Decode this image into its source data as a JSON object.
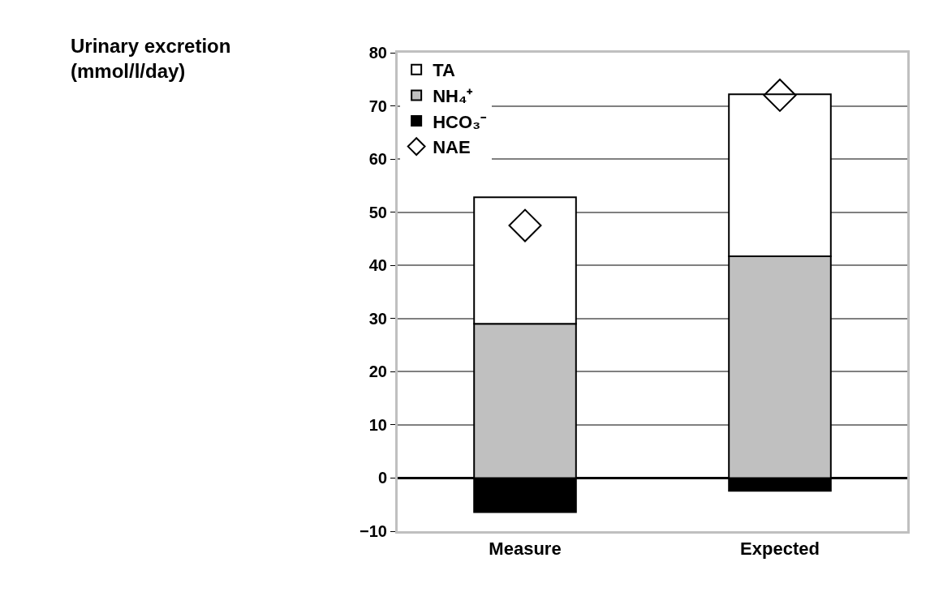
{
  "chart_data": {
    "type": "bar",
    "annotations": [
      "Urinary excretion\n(mmol/l/day)"
    ],
    "categories": [
      "Measure",
      "Expected"
    ],
    "stacked": true,
    "series": [
      {
        "name": "HCO₃⁻",
        "color": "#000000",
        "values": [
          -6.4,
          -2.4
        ]
      },
      {
        "name": "NH₄⁺",
        "color": "#c0c0c0",
        "values": [
          29,
          41.7
        ]
      },
      {
        "name": "TA",
        "color": "#ffffff",
        "values": [
          23.8,
          30.5
        ]
      },
      {
        "name": "NAE",
        "type": "scatter",
        "marker": "diamond",
        "color": "#000000",
        "values": [
          47.5,
          72
        ]
      }
    ],
    "ylim": [
      -10,
      80
    ],
    "yticks": [
      {
        "value": -10,
        "label": "−10"
      },
      0,
      10,
      20,
      30,
      40,
      50,
      60,
      70,
      80
    ],
    "grid": "y",
    "legend": "top left"
  }
}
